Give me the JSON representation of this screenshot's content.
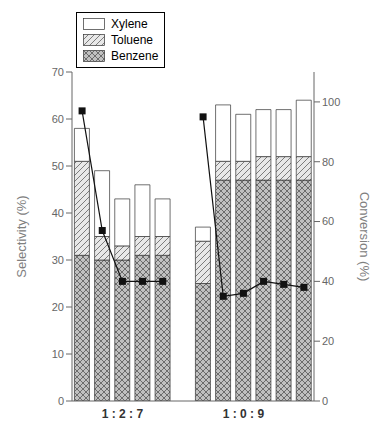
{
  "chart_data": {
    "type": "bar",
    "categories": [
      null,
      null,
      "1 : 2 : 7",
      null,
      null,
      null,
      null,
      null,
      "1 : 0 : 9",
      null,
      null,
      null
    ],
    "series": [
      {
        "name": "Benzene",
        "color": "#c0c0c0",
        "values": [
          31,
          30,
          30,
          31,
          31,
          null,
          25,
          47,
          47,
          47,
          47,
          47
        ]
      },
      {
        "name": "Toluene",
        "color": "#e8e8e8",
        "values": [
          20,
          5,
          3,
          4,
          4,
          null,
          9,
          4,
          4,
          5,
          5,
          5
        ]
      },
      {
        "name": "Xylene",
        "color": "#ffffff",
        "values": [
          7,
          14,
          10,
          11,
          8,
          null,
          3,
          12,
          10,
          10,
          10,
          12
        ]
      },
      {
        "type": "line",
        "axis": "y2",
        "color": "#111111",
        "marker": "square",
        "values": [
          97,
          57,
          40,
          40,
          40,
          null,
          95,
          35,
          36,
          40,
          39,
          38
        ]
      }
    ],
    "stacked": true,
    "ylabel": "Selectivity (%)",
    "y2label": "Conversion (%)",
    "ylim": [
      0,
      70
    ],
    "yticks": [
      0,
      10,
      20,
      30,
      40,
      50,
      60,
      70
    ],
    "y2lim": [
      0,
      110
    ],
    "y2ticks": [
      0,
      20,
      40,
      60,
      80,
      100
    ],
    "grid": false,
    "legend": "upper left"
  }
}
